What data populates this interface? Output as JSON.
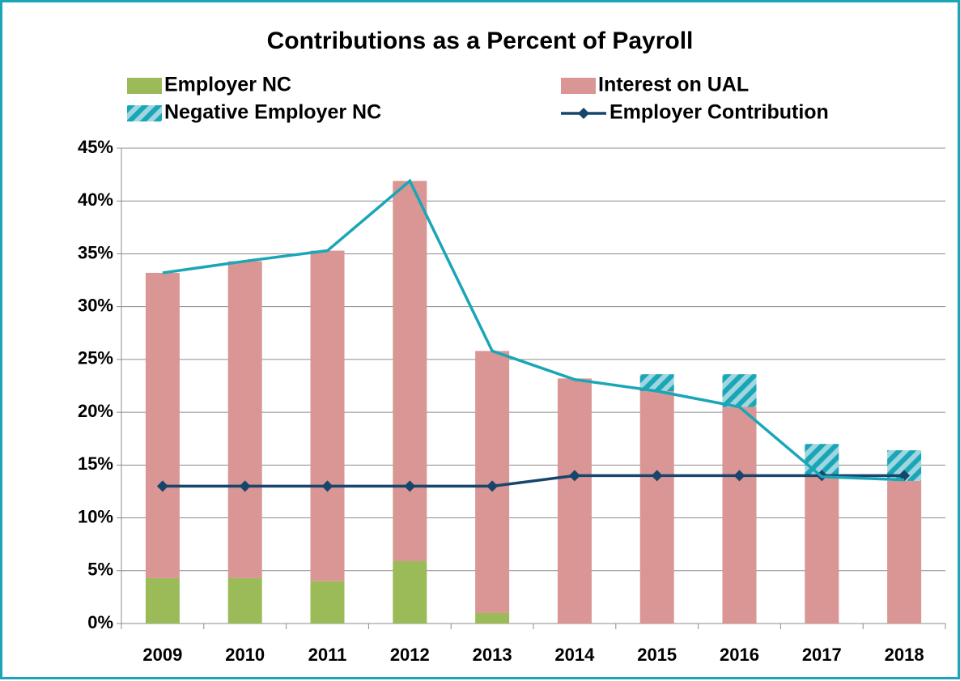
{
  "chart_data": {
    "type": "bar",
    "stacked": true,
    "title": "Contributions as a Percent of Payroll",
    "categories": [
      "2009",
      "2010",
      "2011",
      "2012",
      "2013",
      "2014",
      "2015",
      "2016",
      "2017",
      "2018"
    ],
    "series": [
      {
        "name": "Employer NC",
        "type": "bar",
        "color": "#9bbb59",
        "values": [
          4.3,
          4.3,
          4.0,
          5.9,
          1.0,
          0,
          0,
          0,
          0,
          0
        ]
      },
      {
        "name": "Interest on UAL",
        "type": "bar",
        "color": "#d99694",
        "values": [
          28.9,
          30.0,
          31.3,
          36.0,
          24.8,
          23.2,
          22.0,
          20.5,
          14.0,
          13.5
        ]
      },
      {
        "name": "Negative Employer NC",
        "type": "bar",
        "color": "#1aa6b7",
        "hatch": true,
        "values": [
          0,
          0,
          0,
          0,
          0,
          0,
          1.6,
          3.1,
          3.0,
          2.9
        ]
      },
      {
        "name": "Employer Contribution",
        "type": "line",
        "marker": "diamond",
        "color": "#17456b",
        "values": [
          13,
          13,
          13,
          13,
          13,
          14,
          14,
          14,
          14,
          14
        ]
      },
      {
        "type": "line",
        "color": "#1aa6b7",
        "values": [
          33.2,
          34.3,
          35.3,
          41.9,
          25.8,
          23.1,
          22.0,
          20.5,
          13.9,
          13.6
        ]
      }
    ],
    "ylim": [
      0,
      45
    ],
    "yticks": [
      {
        "value": 0,
        "label": "0%"
      },
      {
        "value": 5,
        "label": "5%"
      },
      {
        "value": 10,
        "label": "10%"
      },
      {
        "value": 15,
        "label": "15%"
      },
      {
        "value": 20,
        "label": "20%"
      },
      {
        "value": 25,
        "label": "25%"
      },
      {
        "value": 30,
        "label": "30%"
      },
      {
        "value": 35,
        "label": "35%"
      },
      {
        "value": 40,
        "label": "40%"
      },
      {
        "value": 45,
        "label": "45%"
      }
    ],
    "grid": true,
    "legend": "top"
  }
}
